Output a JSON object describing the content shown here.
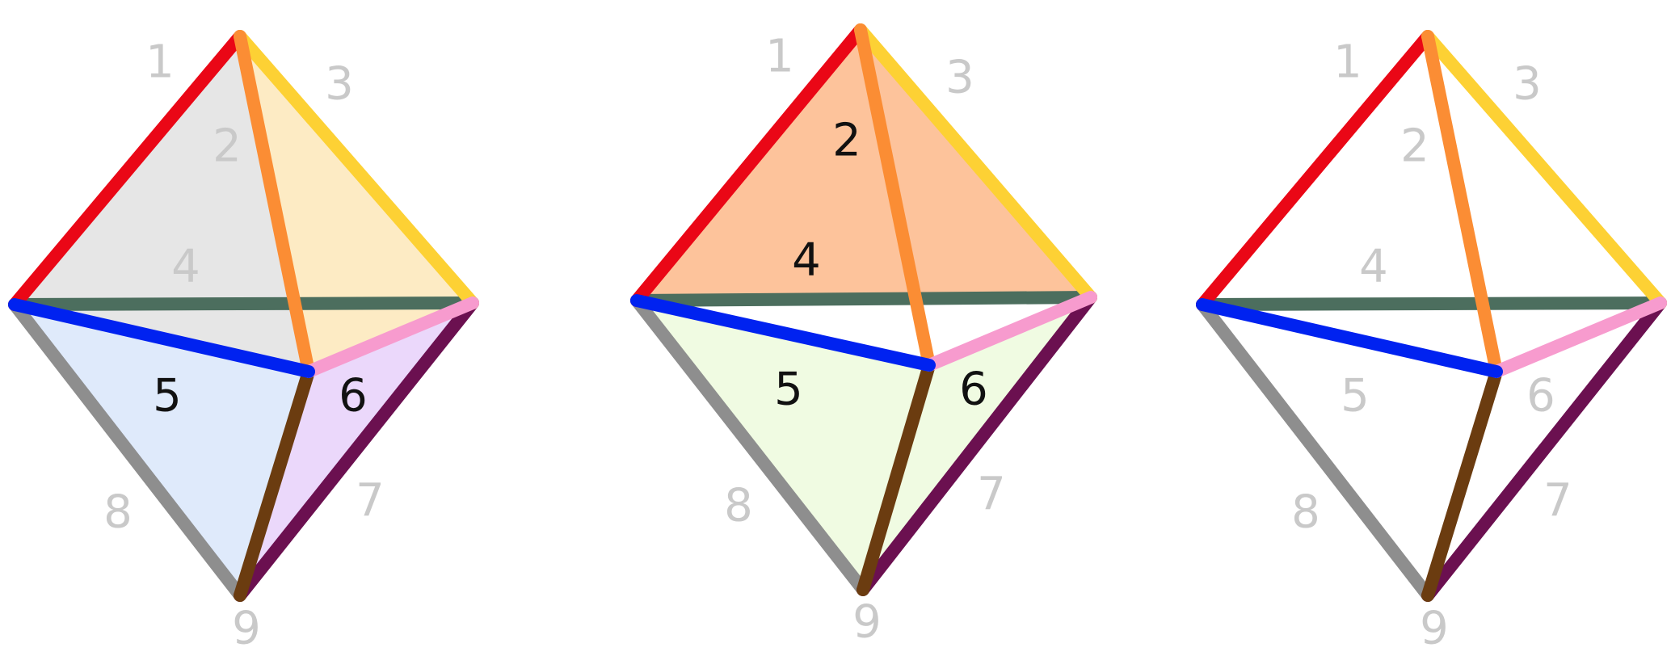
{
  "colors": {
    "edge_red": "#ea0716",
    "edge_yellow": "#fdd134",
    "edge_orange": "#fb8d34",
    "edge_darkgreen": "#4c6e5e",
    "edge_blue": "#0022f0",
    "edge_pink": "#f79bce",
    "edge_gray": "#8e8e8e",
    "edge_maroon": "#6b1050",
    "edge_brown": "#6b3c10",
    "face_gray": "#e6e6e6",
    "face_cream": "#fdebc4",
    "face_lightblue": "#dfeafb",
    "face_lavender": "#ebd8fb",
    "face_peach": "#fdc39b",
    "face_palegreen": "#f0fbe2",
    "label_dim": "#c9c9c9",
    "label_dark": "#111111"
  },
  "panels": [
    {
      "name": "left",
      "labels": [
        {
          "text": "1",
          "style": "dim"
        },
        {
          "text": "2",
          "style": "dim"
        },
        {
          "text": "3",
          "style": "dim"
        },
        {
          "text": "4",
          "style": "dim"
        },
        {
          "text": "5",
          "style": "dark"
        },
        {
          "text": "6",
          "style": "dark"
        },
        {
          "text": "7",
          "style": "dim"
        },
        {
          "text": "8",
          "style": "dim"
        },
        {
          "text": "9",
          "style": "dim"
        }
      ]
    },
    {
      "name": "middle",
      "labels": [
        {
          "text": "1",
          "style": "dim"
        },
        {
          "text": "2",
          "style": "dark"
        },
        {
          "text": "3",
          "style": "dim"
        },
        {
          "text": "4",
          "style": "dark"
        },
        {
          "text": "5",
          "style": "dark"
        },
        {
          "text": "6",
          "style": "dark"
        },
        {
          "text": "7",
          "style": "dim"
        },
        {
          "text": "8",
          "style": "dim"
        },
        {
          "text": "9",
          "style": "dim"
        }
      ]
    },
    {
      "name": "right",
      "labels": [
        {
          "text": "1",
          "style": "dim"
        },
        {
          "text": "2",
          "style": "dim"
        },
        {
          "text": "3",
          "style": "dim"
        },
        {
          "text": "4",
          "style": "dim"
        },
        {
          "text": "5",
          "style": "dim"
        },
        {
          "text": "6",
          "style": "dim"
        },
        {
          "text": "7",
          "style": "dim"
        },
        {
          "text": "8",
          "style": "dim"
        },
        {
          "text": "9",
          "style": "dim"
        }
      ]
    }
  ]
}
